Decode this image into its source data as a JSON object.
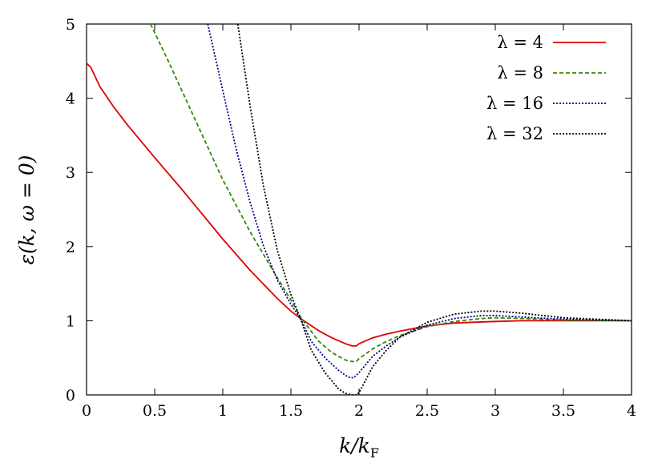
{
  "chart_data": {
    "type": "line",
    "xlabel": "k/k_F",
    "ylabel": "ε(k, ω = 0)",
    "xlim": [
      0,
      4
    ],
    "ylim": [
      0,
      5
    ],
    "xticks": [
      "0",
      "0.5",
      "1",
      "1.5",
      "2",
      "2.5",
      "3",
      "3.5",
      "4"
    ],
    "yticks": [
      "0",
      "1",
      "2",
      "3",
      "4",
      "5"
    ],
    "grid": false,
    "legend_position": "top-right",
    "series": [
      {
        "name": "λ = 4",
        "color": "#e00000",
        "dash": "solid",
        "x": [
          0,
          0.03,
          0.1,
          0.2,
          0.3,
          0.5,
          0.7,
          1.0,
          1.2,
          1.4,
          1.5,
          1.57,
          1.7,
          1.8,
          1.9,
          1.95,
          1.98,
          2.0,
          2.1,
          2.2,
          2.3,
          2.5,
          2.7,
          3.0,
          3.2,
          3.5,
          4.0
        ],
        "y": [
          4.47,
          4.42,
          4.15,
          3.88,
          3.64,
          3.2,
          2.77,
          2.1,
          1.68,
          1.3,
          1.13,
          1.03,
          0.87,
          0.77,
          0.69,
          0.66,
          0.66,
          0.69,
          0.77,
          0.82,
          0.86,
          0.93,
          0.97,
          0.99,
          1.0,
          1.0,
          1.0
        ]
      },
      {
        "name": "λ = 8",
        "color": "#2e8b00",
        "dash": "dashed",
        "x": [
          0.47,
          0.6,
          0.8,
          1.0,
          1.2,
          1.4,
          1.5,
          1.57,
          1.7,
          1.8,
          1.9,
          1.95,
          1.98,
          2.0,
          2.1,
          2.2,
          2.3,
          2.5,
          2.7,
          2.9,
          3.0,
          3.2,
          3.5,
          4.0
        ],
        "y": [
          5.0,
          4.5,
          3.7,
          2.9,
          2.2,
          1.58,
          1.28,
          1.05,
          0.73,
          0.57,
          0.47,
          0.45,
          0.45,
          0.49,
          0.62,
          0.72,
          0.8,
          0.92,
          0.99,
          1.03,
          1.04,
          1.03,
          1.01,
          1.0
        ]
      },
      {
        "name": "λ = 16",
        "color": "#00008b",
        "dash": "dotted",
        "x": [
          0.89,
          1.0,
          1.1,
          1.2,
          1.3,
          1.4,
          1.5,
          1.57,
          1.65,
          1.75,
          1.85,
          1.92,
          1.96,
          2.0,
          2.1,
          2.2,
          2.3,
          2.5,
          2.7,
          2.9,
          3.0,
          3.2,
          3.5,
          4.0
        ],
        "y": [
          5.0,
          4.1,
          3.3,
          2.6,
          2.0,
          1.55,
          1.22,
          1.03,
          0.72,
          0.5,
          0.33,
          0.24,
          0.23,
          0.3,
          0.52,
          0.66,
          0.78,
          0.94,
          1.03,
          1.07,
          1.07,
          1.05,
          1.02,
          1.0
        ]
      },
      {
        "name": "λ = 32",
        "color": "#000000",
        "dash": "dotted",
        "x": [
          1.11,
          1.2,
          1.3,
          1.4,
          1.5,
          1.57,
          1.65,
          1.75,
          1.85,
          1.9,
          1.95,
          1.98,
          2.0,
          2.1,
          2.2,
          2.3,
          2.5,
          2.7,
          2.9,
          3.0,
          3.2,
          3.5,
          4.0
        ],
        "y": [
          5.0,
          3.9,
          2.8,
          1.95,
          1.35,
          1.03,
          0.6,
          0.3,
          0.08,
          0.02,
          0.0,
          0.0,
          0.03,
          0.38,
          0.6,
          0.78,
          0.98,
          1.09,
          1.13,
          1.13,
          1.1,
          1.04,
          1.0
        ]
      }
    ]
  }
}
